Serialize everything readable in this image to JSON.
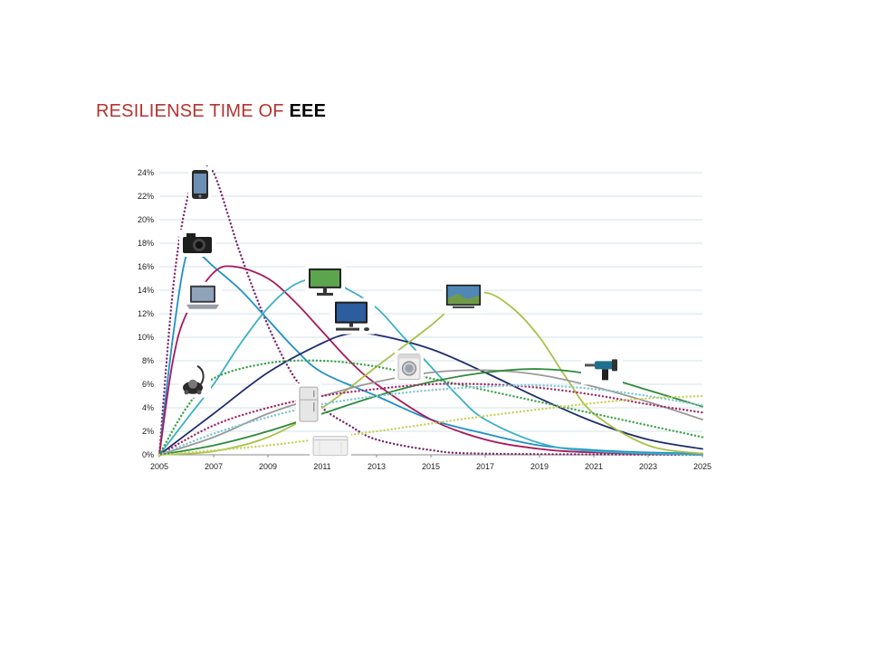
{
  "title": {
    "main": "RESILIENSE TIME OF ",
    "accent": "EEE"
  },
  "colors": {
    "title_main": "#b5342f",
    "title_accent": "#000000",
    "grid": "#d3e3ea"
  },
  "chart_data": {
    "type": "line",
    "title": "RESILIENSE TIME OF EEE",
    "xlabel": "",
    "ylabel": "",
    "xlim": [
      2005,
      2025
    ],
    "ylim": [
      0,
      24
    ],
    "grid": true,
    "x_ticks": [
      "2005",
      "2007",
      "2009",
      "2011",
      "2013",
      "2015",
      "2017",
      "2019",
      "2021",
      "2023",
      "2025"
    ],
    "y_ticks": [
      "0%",
      "2%",
      "4%",
      "6%",
      "8%",
      "10%",
      "12%",
      "14%",
      "16%",
      "18%",
      "20%",
      "22%",
      "24%"
    ],
    "series": [
      {
        "icon": "smartphone-icon",
        "color": "#7b2a6e",
        "style": "dotted",
        "points": [
          [
            2005,
            0
          ],
          [
            2005.5,
            14
          ],
          [
            2006,
            21.5
          ],
          [
            2006.5,
            24
          ],
          [
            2007,
            24
          ],
          [
            2008,
            17
          ],
          [
            2009,
            11
          ],
          [
            2010,
            6.5
          ],
          [
            2011,
            4
          ],
          [
            2012,
            2.5
          ],
          [
            2013,
            1.3
          ],
          [
            2015,
            0.4
          ],
          [
            2017,
            0.1
          ],
          [
            2025,
            0
          ]
        ]
      },
      {
        "icon": "camera-icon",
        "color": "#1e90c8",
        "style": "solid",
        "points": [
          [
            2005,
            0
          ],
          [
            2005.5,
            10
          ],
          [
            2006,
            17
          ],
          [
            2006.5,
            17
          ],
          [
            2007,
            16
          ],
          [
            2008,
            14
          ],
          [
            2009,
            11.5
          ],
          [
            2010,
            9
          ],
          [
            2011,
            7
          ],
          [
            2013,
            5
          ],
          [
            2015,
            3
          ],
          [
            2017,
            1.8
          ],
          [
            2019,
            0.8
          ],
          [
            2021,
            0.4
          ],
          [
            2023,
            0.2
          ],
          [
            2025,
            0.1
          ]
        ]
      },
      {
        "icon": "laptop-icon",
        "color": "#a8195a",
        "style": "solid",
        "points": [
          [
            2005,
            0
          ],
          [
            2005.5,
            8
          ],
          [
            2006,
            12
          ],
          [
            2007,
            15.5
          ],
          [
            2007.8,
            16
          ],
          [
            2009,
            15
          ],
          [
            2010,
            13
          ],
          [
            2011,
            10.5
          ],
          [
            2012,
            8
          ],
          [
            2013,
            6
          ],
          [
            2015,
            3
          ],
          [
            2017,
            1.3
          ],
          [
            2019,
            0.5
          ],
          [
            2021,
            0.2
          ],
          [
            2025,
            0
          ]
        ]
      },
      {
        "icon": "monitor-icon",
        "color": "#3ab0c6",
        "style": "solid",
        "points": [
          [
            2005,
            0
          ],
          [
            2006,
            3
          ],
          [
            2007,
            6
          ],
          [
            2008,
            9.5
          ],
          [
            2009,
            12.5
          ],
          [
            2010,
            14.5
          ],
          [
            2011,
            15
          ],
          [
            2012,
            14
          ],
          [
            2013,
            12.5
          ],
          [
            2014,
            10
          ],
          [
            2015,
            7.5
          ],
          [
            2016,
            5
          ],
          [
            2017,
            3
          ],
          [
            2019,
            1
          ],
          [
            2021,
            0.3
          ],
          [
            2025,
            0
          ]
        ]
      },
      {
        "icon": "desktop-pc-icon",
        "color": "#1f2e6e",
        "style": "solid",
        "points": [
          [
            2005,
            0
          ],
          [
            2007,
            3.5
          ],
          [
            2009,
            7
          ],
          [
            2011,
            9.5
          ],
          [
            2012,
            10.3
          ],
          [
            2013,
            10.2
          ],
          [
            2015,
            9
          ],
          [
            2017,
            7
          ],
          [
            2019,
            4.8
          ],
          [
            2021,
            2.8
          ],
          [
            2023,
            1.3
          ],
          [
            2025,
            0.5
          ]
        ]
      },
      {
        "icon": "tv-icon",
        "color": "#a8c24a",
        "style": "solid",
        "points": [
          [
            2005,
            0
          ],
          [
            2007,
            0.3
          ],
          [
            2009,
            1.5
          ],
          [
            2011,
            4
          ],
          [
            2013,
            7.5
          ],
          [
            2015,
            11
          ],
          [
            2016,
            13
          ],
          [
            2017,
            13.8
          ],
          [
            2018,
            12.5
          ],
          [
            2019,
            10
          ],
          [
            2020,
            6.5
          ],
          [
            2021,
            3.5
          ],
          [
            2023,
            0.8
          ],
          [
            2025,
            0.1
          ]
        ]
      },
      {
        "icon": "vacuum-cleaner-icon",
        "color": "#3ea34a",
        "style": "dotted",
        "points": [
          [
            2005,
            0
          ],
          [
            2006,
            4
          ],
          [
            2007,
            6.5
          ],
          [
            2009,
            7.8
          ],
          [
            2011,
            8
          ],
          [
            2013,
            7.5
          ],
          [
            2015,
            6.5
          ],
          [
            2017,
            5.5
          ],
          [
            2019,
            4.5
          ],
          [
            2021,
            3.5
          ],
          [
            2023,
            2.5
          ],
          [
            2025,
            1.5
          ]
        ]
      },
      {
        "icon": "washing-machine-icon",
        "color": "#999999",
        "style": "solid",
        "points": [
          [
            2005,
            0
          ],
          [
            2007,
            1.5
          ],
          [
            2009,
            3.5
          ],
          [
            2011,
            5
          ],
          [
            2013,
            6.2
          ],
          [
            2015,
            7
          ],
          [
            2017,
            7.2
          ],
          [
            2019,
            6.8
          ],
          [
            2021,
            5.8
          ],
          [
            2023,
            4.5
          ],
          [
            2025,
            3
          ]
        ]
      },
      {
        "icon": "power-drill-icon",
        "color": "#2e8b3a",
        "style": "solid",
        "points": [
          [
            2005,
            0
          ],
          [
            2007,
            0.8
          ],
          [
            2009,
            2
          ],
          [
            2011,
            3.5
          ],
          [
            2013,
            5
          ],
          [
            2015,
            6.2
          ],
          [
            2017,
            7
          ],
          [
            2019,
            7.3
          ],
          [
            2021,
            6.8
          ],
          [
            2023,
            5.5
          ],
          [
            2025,
            4.1
          ]
        ]
      },
      {
        "icon": "refrigerator-icon",
        "color": "#a62a6a",
        "style": "dotted",
        "points": [
          [
            2005,
            0
          ],
          [
            2007,
            2.5
          ],
          [
            2009,
            4
          ],
          [
            2011,
            5
          ],
          [
            2013,
            5.6
          ],
          [
            2015,
            6
          ],
          [
            2017,
            6
          ],
          [
            2019,
            5.7
          ],
          [
            2021,
            5.1
          ],
          [
            2023,
            4.3
          ],
          [
            2025,
            3.6
          ]
        ]
      },
      {
        "icon": "refrigerator-icon",
        "color": "#7fc6d6",
        "style": "dotted",
        "points": [
          [
            2005,
            0
          ],
          [
            2007,
            1.8
          ],
          [
            2009,
            3.2
          ],
          [
            2011,
            4.3
          ],
          [
            2013,
            5
          ],
          [
            2015,
            5.5
          ],
          [
            2017,
            5.8
          ],
          [
            2019,
            5.9
          ],
          [
            2021,
            5.6
          ],
          [
            2023,
            5
          ],
          [
            2025,
            4.2
          ]
        ]
      },
      {
        "icon": "freezer-icon",
        "color": "#c8d25a",
        "style": "dotted",
        "points": [
          [
            2005,
            0
          ],
          [
            2009,
            0.8
          ],
          [
            2013,
            2
          ],
          [
            2017,
            3.3
          ],
          [
            2021,
            4.4
          ],
          [
            2023,
            4.8
          ],
          [
            2025,
            5
          ]
        ]
      }
    ],
    "icons": [
      {
        "name": "smartphone-icon",
        "x": 2006.5,
        "y": 23
      },
      {
        "name": "camera-icon",
        "x": 2006.4,
        "y": 18
      },
      {
        "name": "laptop-icon",
        "x": 2006.6,
        "y": 13.4
      },
      {
        "name": "vacuum-cleaner-icon",
        "x": 2006.3,
        "y": 6.4
      },
      {
        "name": "monitor-icon",
        "x": 2011.1,
        "y": 14.7
      },
      {
        "name": "desktop-pc-icon",
        "x": 2012.1,
        "y": 11.8
      },
      {
        "name": "tv-icon",
        "x": 2016.2,
        "y": 13.4
      },
      {
        "name": "washing-machine-icon",
        "x": 2014.2,
        "y": 7.5
      },
      {
        "name": "refrigerator-icon",
        "x": 2010.5,
        "y": 4.3
      },
      {
        "name": "freezer-icon",
        "x": 2011.3,
        "y": 0.8
      },
      {
        "name": "power-drill-icon",
        "x": 2021.3,
        "y": 7.2
      }
    ]
  }
}
